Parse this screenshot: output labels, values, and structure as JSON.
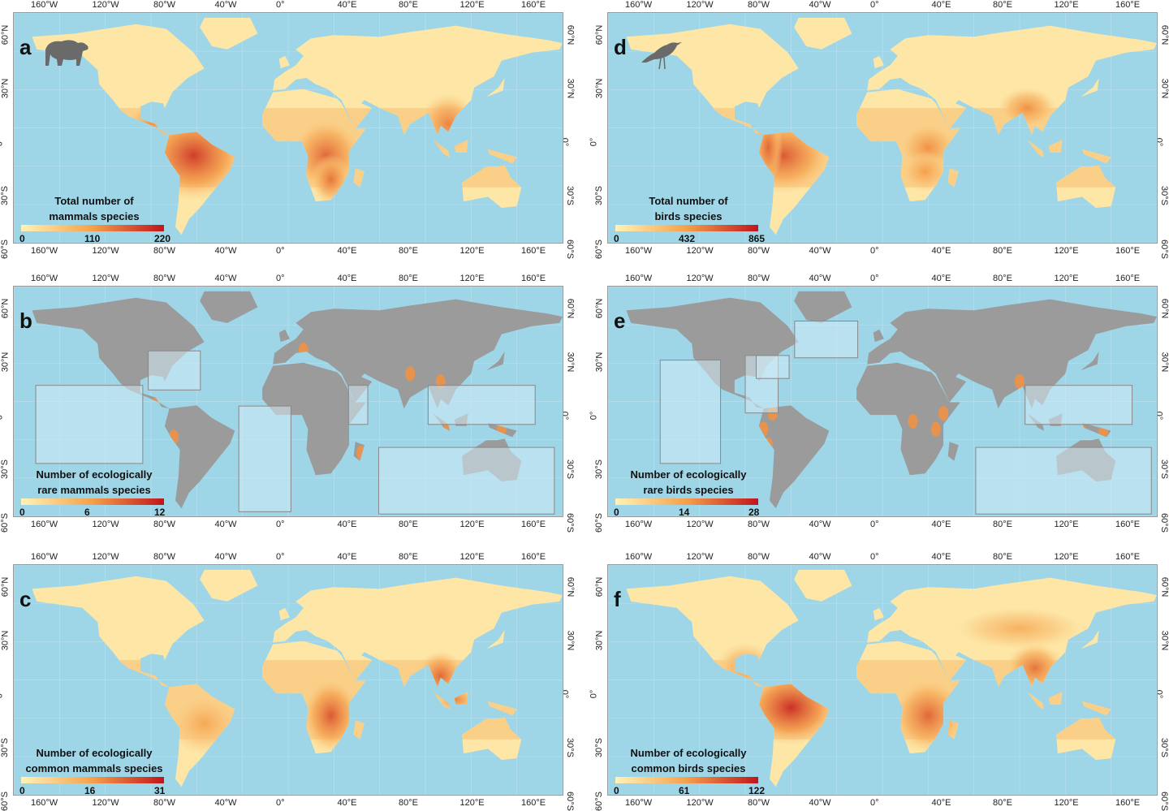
{
  "lon_ticks": [
    "160°W",
    "120°W",
    "80°W",
    "40°W",
    "0°",
    "40°E",
    "80°E",
    "120°E",
    "160°E"
  ],
  "lat_ticks": [
    "60°N",
    "30°N",
    "0°",
    "30°S",
    "60°S"
  ],
  "colors": {
    "ocean": "#9ed6e8",
    "grey_land": "#9b9b9b",
    "low": "#fff3b8",
    "mid": "#f5a04a",
    "high": "#c0141c"
  },
  "panels": [
    {
      "letter": "a",
      "icon": "bear-icon",
      "title_line1": "Total number of",
      "title_line2": "mammals species",
      "min": "0",
      "mid": "110",
      "max": "220",
      "grey_base": false
    },
    {
      "letter": "b",
      "icon": "",
      "title_line1": "Number of ecologically",
      "title_line2": "rare mammals species",
      "min": "0",
      "mid": "6",
      "max": "12",
      "grey_base": true
    },
    {
      "letter": "c",
      "icon": "",
      "title_line1": "Number of ecologically",
      "title_line2": "common mammals species",
      "min": "0",
      "mid": "16",
      "max": "31",
      "grey_base": false
    },
    {
      "letter": "d",
      "icon": "bird-icon",
      "title_line1": "Total number of",
      "title_line2": "birds species",
      "min": "0",
      "mid": "432",
      "max": "865",
      "grey_base": false
    },
    {
      "letter": "e",
      "icon": "",
      "title_line1": "Number of ecologically",
      "title_line2": "rare birds species",
      "min": "0",
      "mid": "14",
      "max": "28",
      "grey_base": true
    },
    {
      "letter": "f",
      "icon": "",
      "title_line1": "Number of ecologically",
      "title_line2": "common birds species",
      "min": "0",
      "mid": "61",
      "max": "122",
      "grey_base": false
    }
  ]
}
